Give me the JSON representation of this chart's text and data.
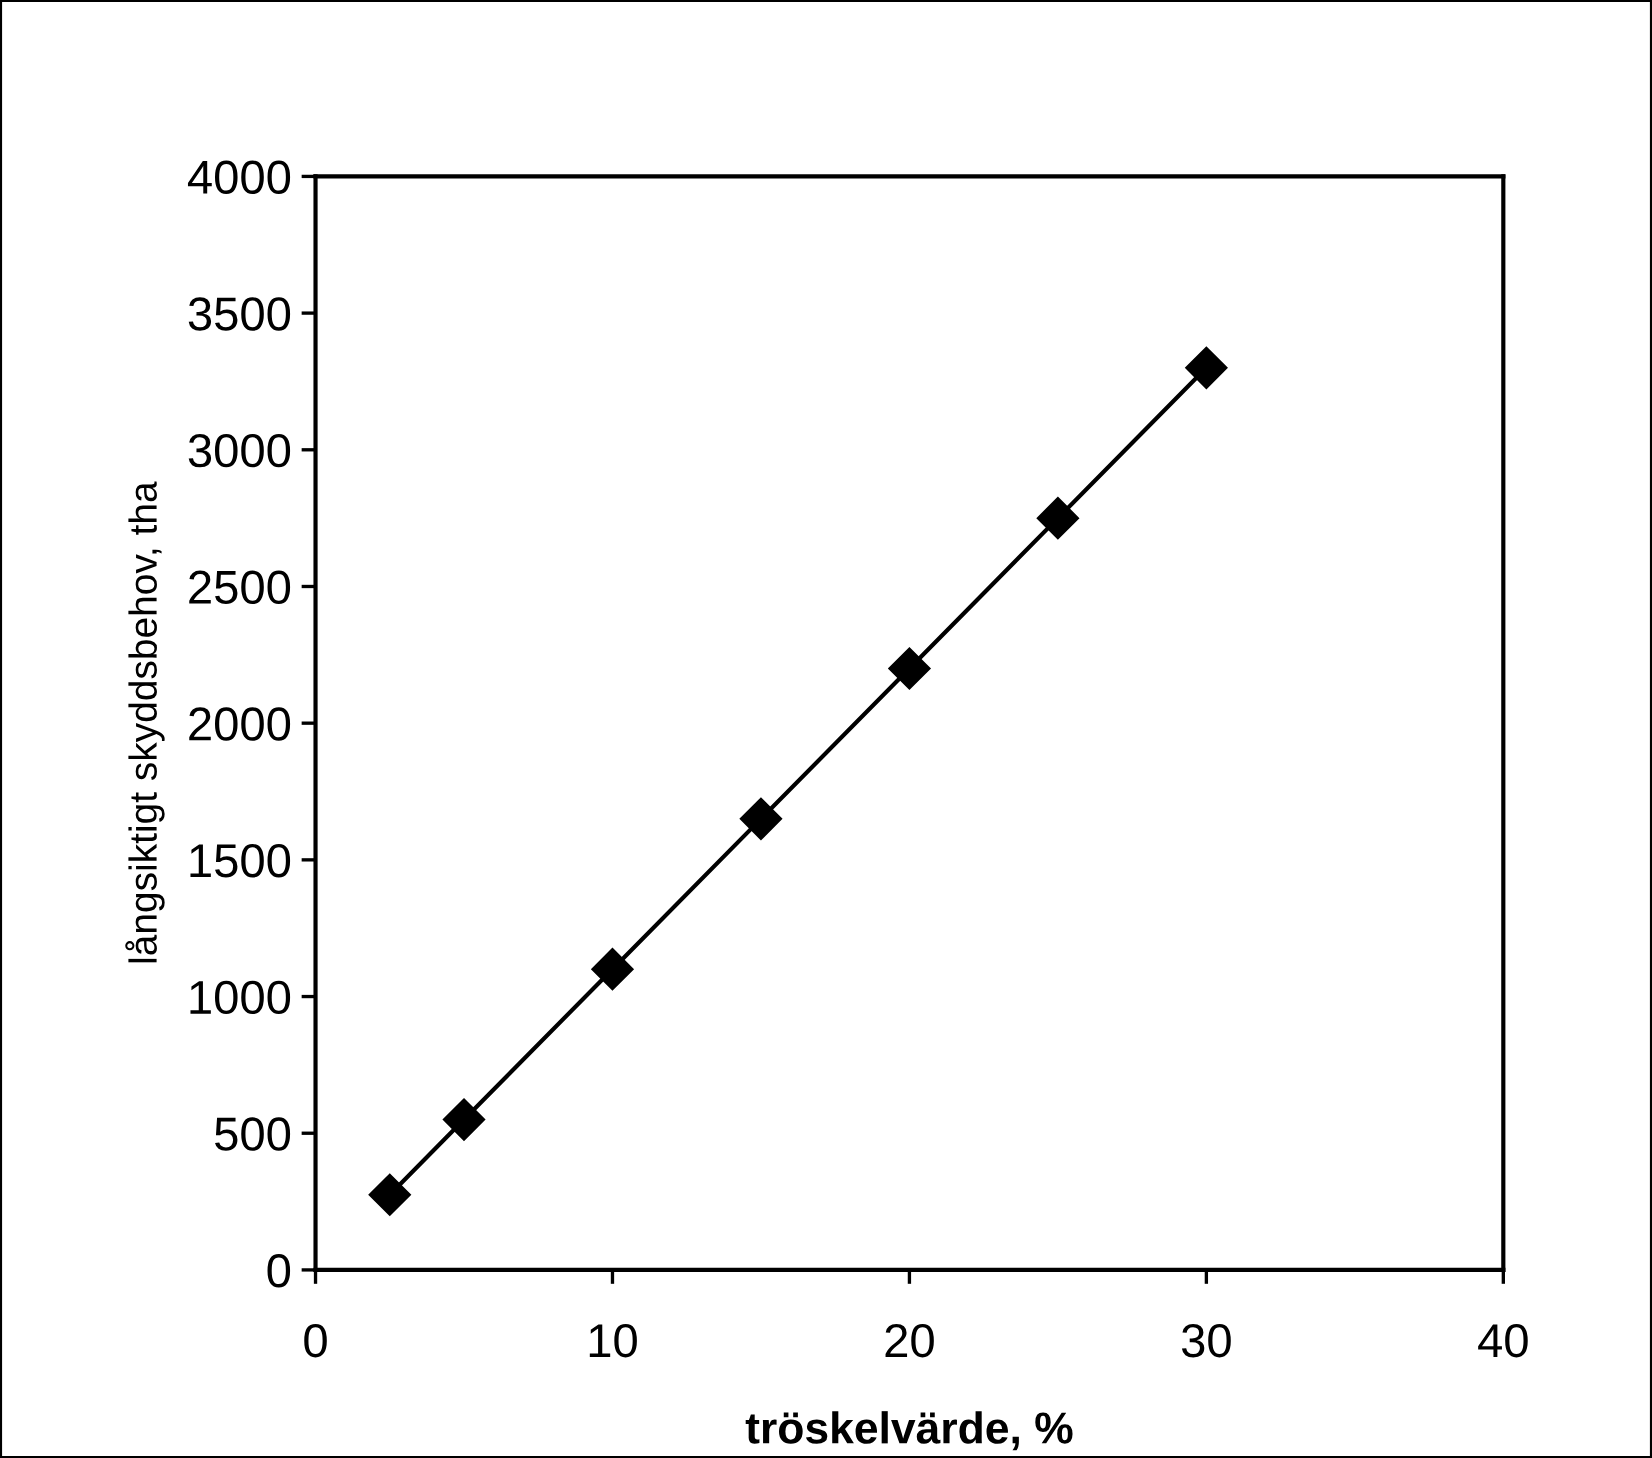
{
  "chart_data": {
    "type": "line",
    "xlabel": "tröskelvärde, %",
    "ylabel": "långsiktigt skyddsbehov, tha",
    "x": [
      2.5,
      5,
      10,
      15,
      20,
      25,
      30
    ],
    "series": [
      {
        "color": "#000000",
        "values": [
          275,
          550,
          1100,
          1650,
          2200,
          2750,
          3300
        ]
      }
    ],
    "xlim": [
      0,
      40
    ],
    "xticks": [
      0,
      10,
      20,
      30,
      40
    ],
    "ylim": [
      0,
      4000
    ],
    "yticks": [
      0,
      500,
      1000,
      1500,
      2000,
      2500,
      3000,
      3500,
      4000
    ],
    "marker": "diamond",
    "line_style": "solid",
    "grid": false,
    "legend": false
  }
}
